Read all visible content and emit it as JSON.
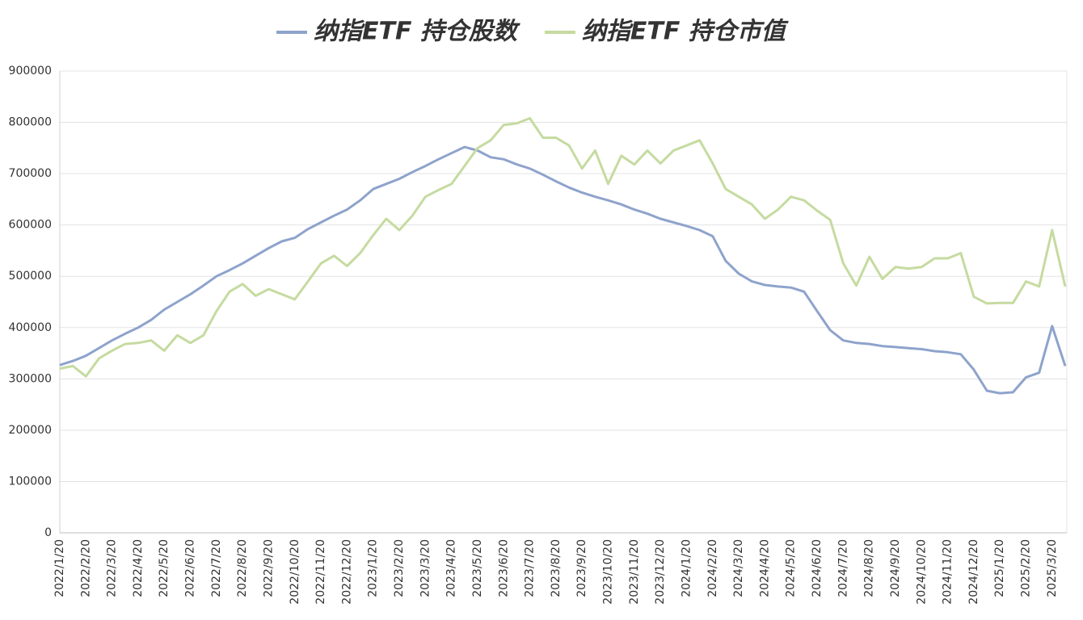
{
  "chart_data": {
    "type": "line",
    "categories": [
      "2022/1/20",
      null,
      "2022/2/20",
      null,
      "2022/3/20",
      null,
      "2022/4/20",
      null,
      "2022/5/20",
      null,
      "2022/6/20",
      null,
      "2022/7/20",
      null,
      "2022/8/20",
      null,
      "2022/9/20",
      null,
      "2022/10/20",
      null,
      "2022/11/20",
      null,
      "2022/12/20",
      null,
      "2023/1/20",
      null,
      "2023/2/20",
      null,
      "2023/3/20",
      null,
      "2023/4/20",
      null,
      "2023/5/20",
      null,
      "2023/6/20",
      null,
      "2023/7/20",
      null,
      "2023/8/20",
      null,
      "2023/9/20",
      null,
      "2023/10/20",
      null,
      "2023/11/20",
      null,
      "2023/12/20",
      null,
      "2024/1/20",
      null,
      "2024/2/20",
      null,
      "2024/3/20",
      null,
      "2024/4/20",
      null,
      "2024/5/20",
      null,
      "2024/6/20",
      null,
      "2024/7/20",
      null,
      "2024/8/20",
      null,
      "2024/9/20",
      null,
      "2024/10/20",
      null,
      "2024/11/20",
      null,
      "2024/12/20",
      null,
      "2025/1/20",
      null,
      "2025/2/20",
      null,
      "2025/3/20",
      null
    ],
    "series": [
      {
        "name": "纳指ETF 持仓股数",
        "color": "#8ea3cc",
        "values": [
          327000,
          335000,
          345000,
          360000,
          375000,
          388000,
          400000,
          415000,
          435000,
          450000,
          465000,
          482000,
          500000,
          512000,
          525000,
          540000,
          555000,
          568000,
          575000,
          592000,
          605000,
          618000,
          630000,
          648000,
          670000,
          680000,
          690000,
          703000,
          715000,
          728000,
          740000,
          752000,
          745000,
          732000,
          728000,
          718000,
          710000,
          698000,
          685000,
          673000,
          663000,
          655000,
          648000,
          640000,
          630000,
          622000,
          612000,
          605000,
          598000,
          590000,
          578000,
          530000,
          505000,
          490000,
          483000,
          480000,
          478000,
          470000,
          432000,
          395000,
          375000,
          370000,
          368000,
          364000,
          362000,
          360000,
          358000,
          354000,
          352000,
          348000,
          318000,
          277000,
          272000,
          274000,
          303000,
          312000,
          403000,
          325000
        ]
      },
      {
        "name": "纳指ETF 持仓市值",
        "color": "#c5dba0",
        "values": [
          320000,
          325000,
          305000,
          340000,
          355000,
          368000,
          370000,
          375000,
          355000,
          385000,
          370000,
          385000,
          432000,
          470000,
          485000,
          462000,
          475000,
          465000,
          455000,
          490000,
          525000,
          540000,
          520000,
          545000,
          580000,
          612000,
          590000,
          618000,
          655000,
          668000,
          680000,
          715000,
          750000,
          765000,
          795000,
          798000,
          808000,
          770000,
          770000,
          755000,
          710000,
          745000,
          680000,
          735000,
          718000,
          745000,
          720000,
          745000,
          755000,
          765000,
          720000,
          670000,
          655000,
          640000,
          612000,
          630000,
          655000,
          648000,
          628000,
          610000,
          525000,
          482000,
          538000,
          495000,
          518000,
          515000,
          518000,
          535000,
          535000,
          545000,
          460000,
          447000,
          448000,
          448000,
          490000,
          480000,
          590000,
          480000
        ]
      }
    ],
    "ylim": [
      0,
      900000
    ],
    "yticks": [
      0,
      100000,
      200000,
      300000,
      400000,
      500000,
      600000,
      700000,
      800000,
      900000
    ],
    "grid": true,
    "legend": "top"
  }
}
